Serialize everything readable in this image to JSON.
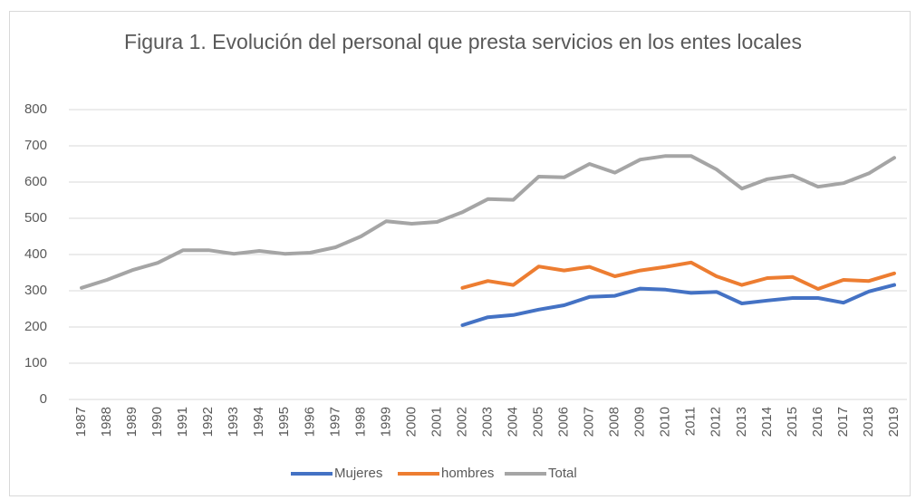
{
  "chart_data": {
    "type": "line",
    "title": "Figura 1. Evolución del personal que presta servicios en los entes locales",
    "categories": [
      "1987",
      "1988",
      "1989",
      "1990",
      "1991",
      "1992",
      "1993",
      "1994",
      "1995",
      "1996",
      "1997",
      "1998",
      "1999",
      "2000",
      "2001",
      "2002",
      "2003",
      "2004",
      "2005",
      "2006",
      "2007",
      "2008",
      "2009",
      "2010",
      "2011",
      "2012",
      "2013",
      "2014",
      "2015",
      "2016",
      "2017",
      "2018",
      "2019"
    ],
    "series": [
      {
        "name": "Mujeres",
        "color": "#4472c4",
        "values": [
          null,
          null,
          null,
          null,
          null,
          null,
          null,
          null,
          null,
          null,
          null,
          null,
          null,
          null,
          null,
          205,
          227,
          233,
          248,
          260,
          283,
          286,
          306,
          303,
          294,
          297,
          265,
          273,
          280,
          280,
          267,
          298,
          316
        ]
      },
      {
        "name": "hombres",
        "color": "#ed7d31",
        "values": [
          null,
          null,
          null,
          null,
          null,
          null,
          null,
          null,
          null,
          null,
          null,
          null,
          null,
          null,
          null,
          308,
          327,
          316,
          367,
          356,
          366,
          340,
          356,
          366,
          378,
          340,
          316,
          335,
          338,
          305,
          330,
          327,
          348
        ]
      },
      {
        "name": "Total",
        "color": "#a5a5a5",
        "values": [
          308,
          330,
          357,
          377,
          412,
          412,
          402,
          410,
          402,
          405,
          420,
          450,
          492,
          485,
          490,
          517,
          553,
          551,
          615,
          613,
          650,
          626,
          662,
          672,
          672,
          635,
          582,
          608,
          618,
          587,
          597,
          624,
          667
        ]
      }
    ],
    "ylim": [
      0,
      800
    ],
    "yticks": [
      0,
      100,
      200,
      300,
      400,
      500,
      600,
      700,
      800
    ],
    "grid": true,
    "legend": "bottom"
  }
}
